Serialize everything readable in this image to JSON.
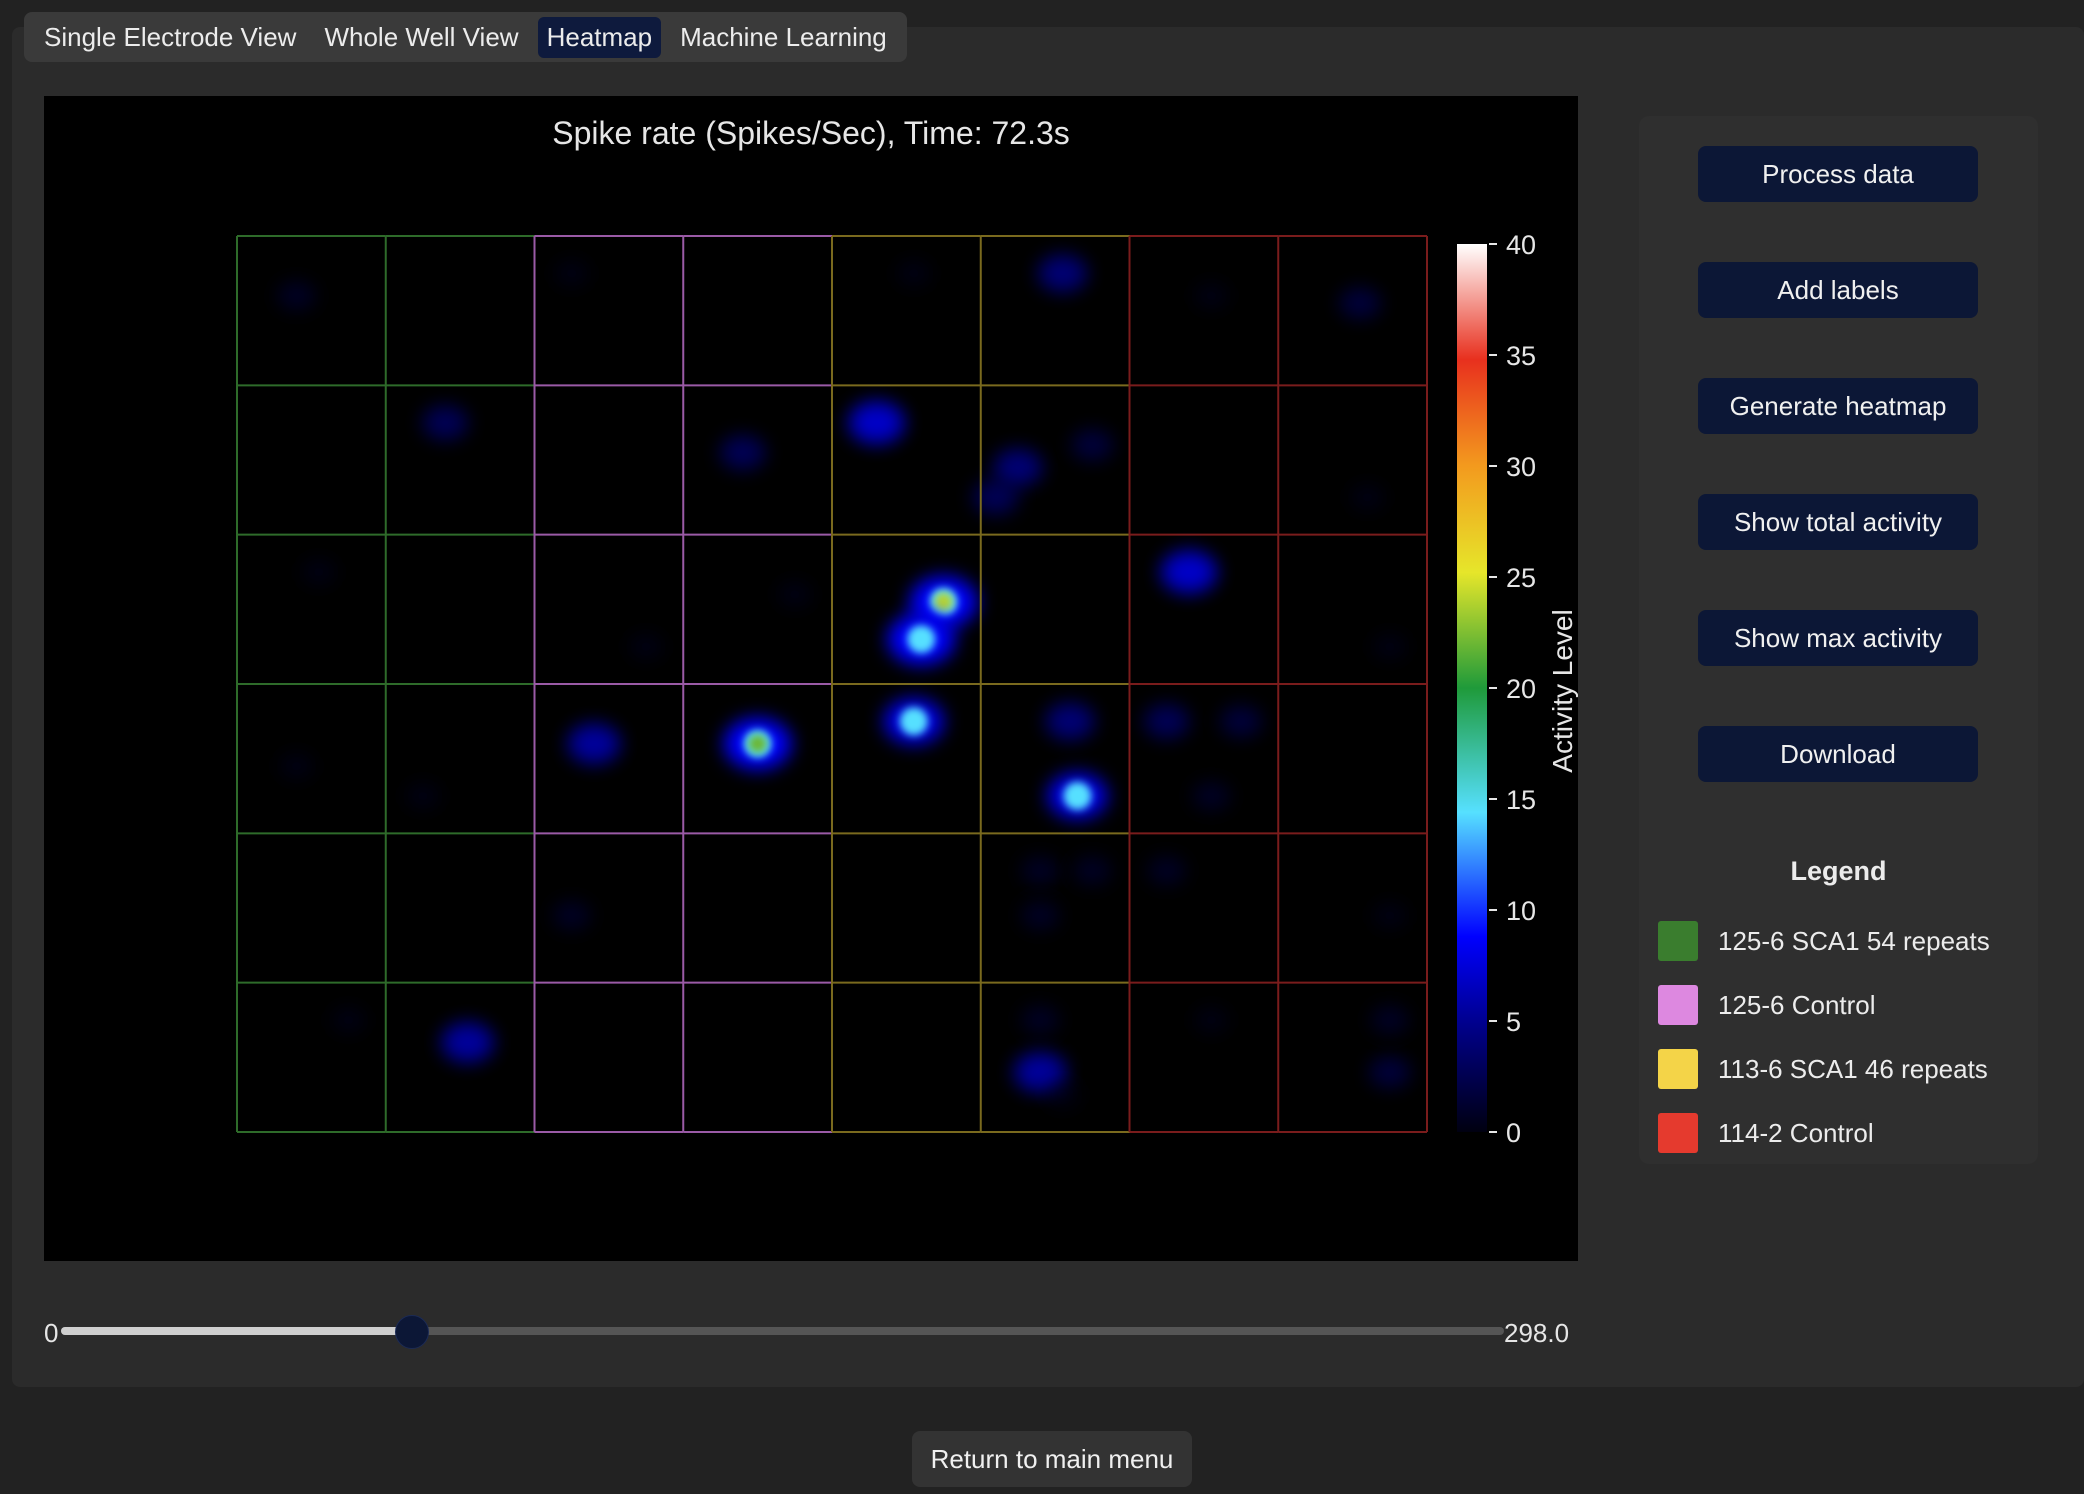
{
  "tabs": [
    {
      "label": "Single Electrode View",
      "active": false
    },
    {
      "label": "Whole Well View",
      "active": false
    },
    {
      "label": "Heatmap",
      "active": true
    },
    {
      "label": "Machine Learning",
      "active": false
    }
  ],
  "chart_data": {
    "type": "heatmap",
    "title": "Spike rate (Spikes/Sec), Time: 72.3s",
    "colorbar_label": "Activity Level",
    "colorbar_range": [
      0,
      40
    ],
    "colorbar_ticks": [
      "40",
      "35",
      "30",
      "25",
      "20",
      "15",
      "10",
      "5",
      "0"
    ],
    "grid": {
      "columns": 8,
      "rows": 6
    },
    "column_group_colors": [
      "#2e6b2a",
      "#2e6b2a",
      "#9a5aa6",
      "#9a5aa6",
      "#7a6a1e",
      "#7a6a1e",
      "#7a1c1c",
      "#7a1c1c"
    ],
    "hotspots": [
      {
        "col": 3.5,
        "row": 3.4,
        "value": 22
      },
      {
        "col": 4.75,
        "row": 2.45,
        "value": 24
      },
      {
        "col": 4.6,
        "row": 2.7,
        "value": 12
      },
      {
        "col": 4.55,
        "row": 3.25,
        "value": 8
      },
      {
        "col": 4.3,
        "row": 1.25,
        "value": 7
      },
      {
        "col": 6.4,
        "row": 2.25,
        "value": 7
      },
      {
        "col": 5.65,
        "row": 3.75,
        "value": 8
      },
      {
        "col": 5.6,
        "row": 3.25,
        "value": 5
      },
      {
        "col": 6.25,
        "row": 3.25,
        "value": 4
      },
      {
        "col": 6.75,
        "row": 3.25,
        "value": 3
      },
      {
        "col": 2.4,
        "row": 3.4,
        "value": 6
      },
      {
        "col": 5.55,
        "row": 0.25,
        "value": 5
      },
      {
        "col": 3.4,
        "row": 1.45,
        "value": 4
      },
      {
        "col": 1.4,
        "row": 1.25,
        "value": 4
      },
      {
        "col": 1.55,
        "row": 5.4,
        "value": 6
      },
      {
        "col": 5.4,
        "row": 5.6,
        "value": 6
      },
      {
        "col": 5.25,
        "row": 1.55,
        "value": 5
      },
      {
        "col": 5.1,
        "row": 1.75,
        "value": 4
      },
      {
        "col": 5.75,
        "row": 1.4,
        "value": 3
      },
      {
        "col": 7.55,
        "row": 0.45,
        "value": 3
      },
      {
        "col": 7.75,
        "row": 5.6,
        "value": 3
      },
      {
        "col": 7.75,
        "row": 5.25,
        "value": 2
      },
      {
        "col": 0.4,
        "row": 0.4,
        "value": 2
      },
      {
        "col": 2.25,
        "row": 0.25,
        "value": 1
      },
      {
        "col": 4.55,
        "row": 0.25,
        "value": 1
      },
      {
        "col": 6.55,
        "row": 0.4,
        "value": 1
      },
      {
        "col": 2.75,
        "row": 2.75,
        "value": 1
      },
      {
        "col": 3.75,
        "row": 2.4,
        "value": 1
      },
      {
        "col": 5.4,
        "row": 4.25,
        "value": 2
      },
      {
        "col": 5.75,
        "row": 4.25,
        "value": 2
      },
      {
        "col": 5.4,
        "row": 4.55,
        "value": 2
      },
      {
        "col": 6.25,
        "row": 4.25,
        "value": 2
      },
      {
        "col": 2.25,
        "row": 4.55,
        "value": 2
      },
      {
        "col": 7.75,
        "row": 4.55,
        "value": 1
      },
      {
        "col": 6.55,
        "row": 3.75,
        "value": 2
      },
      {
        "col": 5.4,
        "row": 5.25,
        "value": 2
      },
      {
        "col": 5.55,
        "row": 5.75,
        "value": 1
      },
      {
        "col": 0.4,
        "row": 3.55,
        "value": 1
      },
      {
        "col": 1.25,
        "row": 3.75,
        "value": 1
      },
      {
        "col": 0.55,
        "row": 2.25,
        "value": 1
      },
      {
        "col": 6.55,
        "row": 5.25,
        "value": 1
      },
      {
        "col": 7.6,
        "row": 1.75,
        "value": 1
      },
      {
        "col": 0.75,
        "row": 5.25,
        "value": 1
      },
      {
        "col": 7.75,
        "row": 2.75,
        "value": 1
      }
    ]
  },
  "sidebar": {
    "buttons": [
      {
        "name": "process-data-button",
        "label": "Process data"
      },
      {
        "name": "add-labels-button",
        "label": "Add labels"
      },
      {
        "name": "generate-heatmap-button",
        "label": "Generate heatmap"
      },
      {
        "name": "show-total-activity-button",
        "label": "Show total activity"
      },
      {
        "name": "show-max-activity-button",
        "label": "Show max activity"
      },
      {
        "name": "download-button",
        "label": "Download"
      }
    ],
    "legend_title": "Legend",
    "legend_items": [
      {
        "label": "125-6 SCA1 54 repeats",
        "color": "#3a7d2e"
      },
      {
        "label": "125-6 Control",
        "color": "#dd88e0"
      },
      {
        "label": "113-6 SCA1 46 repeats",
        "color": "#f4d448"
      },
      {
        "label": "114-2 Control",
        "color": "#e53a2e"
      }
    ]
  },
  "slider": {
    "min_label": "0",
    "max_label": "298.0",
    "min": 0,
    "max": 298.0,
    "value": 72.3
  },
  "footer": {
    "return_label": "Return to main menu"
  }
}
